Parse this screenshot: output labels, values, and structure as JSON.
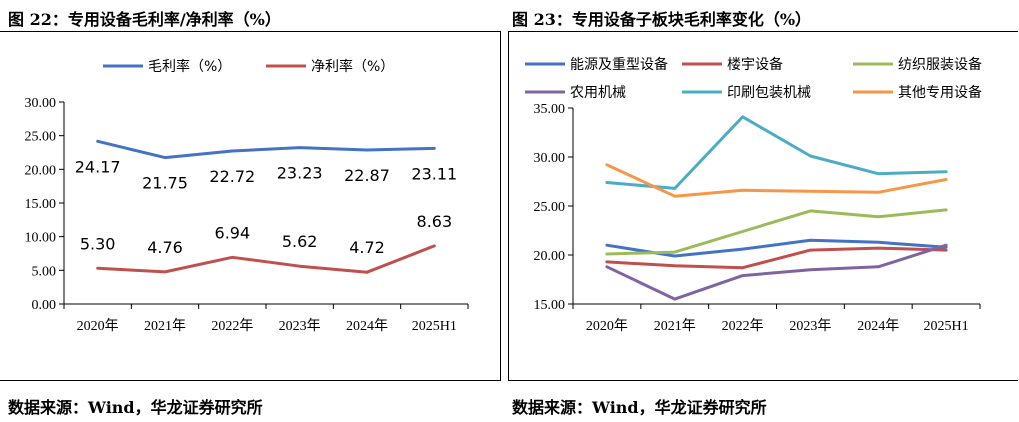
{
  "left_figure": {
    "title": "图 22：专用设备毛利率/净利率（%）",
    "source": "数据来源：Wind，华龙证券研究所"
  },
  "right_figure": {
    "title": "图 23：专用设备子板块毛利率变化（%）",
    "source": "数据来源：Wind，华龙证券研究所"
  },
  "chart_data": [
    {
      "type": "line",
      "title": "专用设备毛利率/净利率（%）",
      "categories": [
        "2020年",
        "2021年",
        "2022年",
        "2023年",
        "2024年",
        "2025H1"
      ],
      "ylim": [
        0,
        30
      ],
      "yticks": [
        "0.00",
        "5.00",
        "10.00",
        "15.00",
        "20.00",
        "25.00",
        "30.00"
      ],
      "legend": "top",
      "data_labels": true,
      "series": [
        {
          "name": "毛利率（%）",
          "color": "#4472C4",
          "values": [
            24.17,
            21.75,
            22.72,
            23.23,
            22.87,
            23.11
          ],
          "labels": [
            "24.17",
            "21.75",
            "22.72",
            "23.23",
            "22.87",
            "23.11"
          ]
        },
        {
          "name": "净利率（%）",
          "color": "#C0504D",
          "values": [
            5.3,
            4.76,
            6.94,
            5.62,
            4.72,
            8.63
          ],
          "labels": [
            "5.30",
            "4.76",
            "6.94",
            "5.62",
            "4.72",
            "8.63"
          ]
        }
      ]
    },
    {
      "type": "line",
      "title": "专用设备子板块毛利率变化（%）",
      "categories": [
        "2020年",
        "2021年",
        "2022年",
        "2023年",
        "2024年",
        "2025H1"
      ],
      "ylim": [
        15,
        35
      ],
      "yticks": [
        "15.00",
        "20.00",
        "25.00",
        "30.00",
        "35.00"
      ],
      "legend": "top",
      "series": [
        {
          "name": "能源及重型设备",
          "color": "#4472C4",
          "values": [
            21.0,
            19.9,
            20.6,
            21.5,
            21.3,
            20.8
          ]
        },
        {
          "name": "楼宇设备",
          "color": "#C0504D",
          "values": [
            19.3,
            18.9,
            18.7,
            20.5,
            20.7,
            20.5
          ]
        },
        {
          "name": "纺织服装设备",
          "color": "#9BBB59",
          "values": [
            20.1,
            20.3,
            22.4,
            24.5,
            23.9,
            24.6
          ]
        },
        {
          "name": "农用机械",
          "color": "#8064A2",
          "values": [
            18.8,
            15.5,
            17.9,
            18.5,
            18.8,
            21.0
          ]
        },
        {
          "name": "印刷包装机械",
          "color": "#4BACC6",
          "values": [
            27.4,
            26.8,
            34.1,
            30.1,
            28.3,
            28.5
          ]
        },
        {
          "name": "其他专用设备",
          "color": "#F79646",
          "values": [
            29.2,
            26.0,
            26.6,
            26.5,
            26.4,
            27.7
          ]
        }
      ]
    }
  ]
}
